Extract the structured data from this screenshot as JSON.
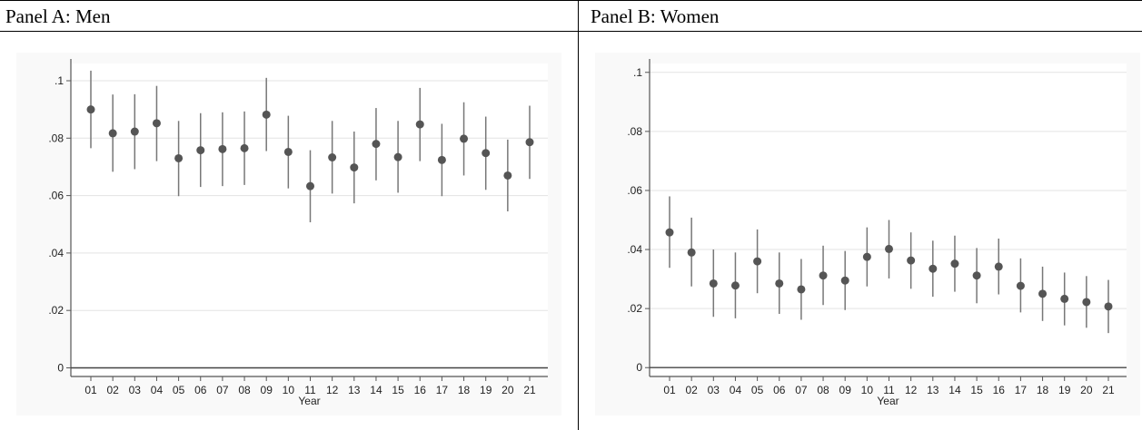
{
  "panels": {
    "a_title": "Panel A: Men",
    "b_title": "Panel B: Women"
  },
  "colors": {
    "marker": "#555555",
    "ci_line": "#777777",
    "grid": "#e3e3e3",
    "axis": "#555555",
    "plot_bg": "#ffffff",
    "outer_bg": "#f9f9f9"
  },
  "chart_data": [
    {
      "type": "scatter",
      "subtype": "point-with-confidence-interval",
      "title": "",
      "xlabel": "Year",
      "ylabel": "",
      "categories": [
        "01",
        "02",
        "03",
        "04",
        "05",
        "06",
        "07",
        "08",
        "09",
        "10",
        "11",
        "12",
        "13",
        "14",
        "15",
        "16",
        "17",
        "18",
        "19",
        "20",
        "21"
      ],
      "y_ticks": [
        0,
        0.02,
        0.04,
        0.06,
        0.08,
        0.1
      ],
      "y_tick_labels": [
        "0",
        ".02",
        ".04",
        ".06",
        ".08",
        ".1"
      ],
      "ylim": [
        -0.003,
        0.106
      ],
      "grid": true,
      "series": [
        {
          "values": [
            0.09,
            0.0817,
            0.0823,
            0.0852,
            0.073,
            0.0758,
            0.0762,
            0.0765,
            0.0882,
            0.0752,
            0.0633,
            0.0733,
            0.0698,
            0.078,
            0.0734,
            0.0848,
            0.0724,
            0.0798,
            0.0748,
            0.067,
            0.0786
          ],
          "ci_low": [
            0.0765,
            0.0683,
            0.0692,
            0.072,
            0.0598,
            0.063,
            0.0633,
            0.0637,
            0.0755,
            0.0625,
            0.0507,
            0.0607,
            0.0573,
            0.0653,
            0.061,
            0.072,
            0.0598,
            0.067,
            0.062,
            0.0545,
            0.0658
          ],
          "ci_high": [
            0.1035,
            0.0952,
            0.0953,
            0.0982,
            0.086,
            0.0887,
            0.089,
            0.0893,
            0.101,
            0.0878,
            0.0758,
            0.086,
            0.0823,
            0.0905,
            0.086,
            0.0975,
            0.085,
            0.0925,
            0.0875,
            0.0795,
            0.0913
          ]
        }
      ]
    },
    {
      "type": "scatter",
      "subtype": "point-with-confidence-interval",
      "title": "",
      "xlabel": "Year",
      "ylabel": "",
      "categories": [
        "01",
        "02",
        "03",
        "04",
        "05",
        "06",
        "07",
        "08",
        "09",
        "10",
        "11",
        "12",
        "13",
        "14",
        "15",
        "16",
        "17",
        "18",
        "19",
        "20",
        "21"
      ],
      "y_ticks": [
        0,
        0.02,
        0.04,
        0.06,
        0.08,
        0.1
      ],
      "y_tick_labels": [
        "0",
        ".02",
        ".04",
        ".06",
        ".08",
        ".1"
      ],
      "ylim": [
        -0.003,
        0.103
      ],
      "grid": true,
      "series": [
        {
          "values": [
            0.0458,
            0.039,
            0.0285,
            0.0278,
            0.036,
            0.0285,
            0.0265,
            0.0312,
            0.0295,
            0.0375,
            0.0402,
            0.0363,
            0.0335,
            0.0352,
            0.0312,
            0.0342,
            0.0277,
            0.025,
            0.0233,
            0.0222,
            0.0207
          ],
          "ci_low": [
            0.0338,
            0.0275,
            0.0172,
            0.0167,
            0.0252,
            0.0182,
            0.0162,
            0.0212,
            0.0195,
            0.0275,
            0.0302,
            0.0267,
            0.024,
            0.0257,
            0.0218,
            0.0248,
            0.0187,
            0.0158,
            0.0143,
            0.0135,
            0.0117
          ],
          "ci_high": [
            0.058,
            0.0508,
            0.04,
            0.039,
            0.0468,
            0.039,
            0.0368,
            0.0413,
            0.0395,
            0.0475,
            0.05,
            0.0458,
            0.043,
            0.0447,
            0.0405,
            0.0437,
            0.037,
            0.0342,
            0.0322,
            0.031,
            0.0297
          ]
        }
      ]
    }
  ]
}
